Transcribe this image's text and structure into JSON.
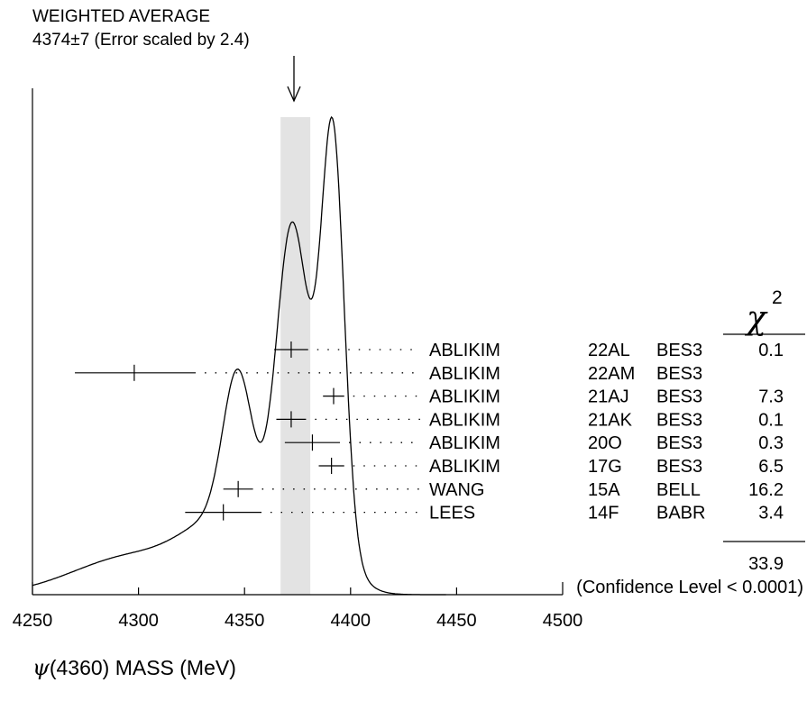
{
  "title_line1": "WEIGHTED AVERAGE",
  "title_line2": "4374±7 (Error scaled by 2.4)",
  "chi2_header": "χ",
  "chi2_superscript": "2",
  "xlabel_symbol": "ψ",
  "xlabel_rest": "(4360) MASS (MeV)",
  "chi2_total": "33.9",
  "confidence_level": "(Confidence Level < 0.0001)",
  "chart_data": {
    "type": "scatter",
    "title": "WEIGHTED AVERAGE 4374±7 (Error scaled by 2.4)",
    "xlabel": "ψ(4360) MASS (MeV)",
    "xlim": [
      4250,
      4500
    ],
    "x_ticks": [
      4250,
      4300,
      4350,
      4400,
      4450,
      4500
    ],
    "weighted_average": 4374,
    "weighted_average_error": 7,
    "error_scale": 2.4,
    "measurements": [
      {
        "author": "ABLIKIM",
        "ref": "22AL",
        "experiment": "BES3",
        "value": 4372,
        "low": 4364,
        "high": 4380,
        "chi2": "0.1"
      },
      {
        "author": "ABLIKIM",
        "ref": "22AM",
        "experiment": "BES3",
        "value": 4298,
        "low": 4270,
        "high": 4327,
        "chi2": ""
      },
      {
        "author": "ABLIKIM",
        "ref": "21AJ",
        "experiment": "BES3",
        "value": 4392,
        "low": 4387,
        "high": 4397,
        "chi2": "7.3"
      },
      {
        "author": "ABLIKIM",
        "ref": "21AK",
        "experiment": "BES3",
        "value": 4372,
        "low": 4365,
        "high": 4379,
        "chi2": "0.1"
      },
      {
        "author": "ABLIKIM",
        "ref": "20O",
        "experiment": "BES3",
        "value": 4382,
        "low": 4369,
        "high": 4395,
        "chi2": "0.3"
      },
      {
        "author": "ABLIKIM",
        "ref": "17G",
        "experiment": "BES3",
        "value": 4391,
        "low": 4385,
        "high": 4397,
        "chi2": "6.5"
      },
      {
        "author": "WANG",
        "ref": "15A",
        "experiment": "BELL",
        "value": 4347,
        "low": 4340,
        "high": 4354,
        "chi2": "16.2"
      },
      {
        "author": "LEES",
        "ref": "14F",
        "experiment": "BABR",
        "value": 4340,
        "low": 4322,
        "high": 4358,
        "chi2": "3.4"
      }
    ]
  }
}
